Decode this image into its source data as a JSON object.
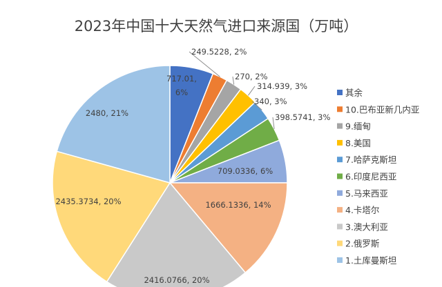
{
  "chart_data": {
    "type": "pie",
    "title": "2023年中国十大天然气进口来源国（万吨）",
    "legend_position": "right",
    "slices": [
      {
        "label": "其余",
        "value": 717.01,
        "percent": "6%",
        "color": "#4472c4",
        "data_label": "717.01, 6%"
      },
      {
        "label": "10.巴布亚新几内亚",
        "value": 249.5228,
        "percent": "2%",
        "color": "#ed7d31",
        "data_label": "249.5228, 2%"
      },
      {
        "label": "9.缅甸",
        "value": 270,
        "percent": "2%",
        "color": "#a5a5a5",
        "data_label": "270, 2%"
      },
      {
        "label": "8.美国",
        "value": 314.939,
        "percent": "3%",
        "color": "#ffc000",
        "data_label": "314.939, 3%"
      },
      {
        "label": "7.哈萨克斯坦",
        "value": 340,
        "percent": "3%",
        "color": "#5b9bd5",
        "data_label": "340, 3%"
      },
      {
        "label": "6.印度尼西亚",
        "value": 398.5741,
        "percent": "3%",
        "color": "#70ad47",
        "data_label": "398.5741, 3%"
      },
      {
        "label": "5.马来西亚",
        "value": 709.0336,
        "percent": "6%",
        "color": "#8faadc",
        "data_label": "709.0336, 6%"
      },
      {
        "label": "4.卡塔尔",
        "value": 1666.1336,
        "percent": "14%",
        "color": "#f4b183",
        "data_label": "1666.1336, 14%"
      },
      {
        "label": "3.澳大利亚",
        "value": 2416.0766,
        "percent": "20%",
        "color": "#c9c9c9",
        "data_label": "2416.0766, 20%"
      },
      {
        "label": "2.俄罗斯",
        "value": 2435.3734,
        "percent": "20%",
        "color": "#ffd97a",
        "data_label": "2435.3734, 20%"
      },
      {
        "label": "1.土库曼斯坦",
        "value": 2480,
        "percent": "21%",
        "color": "#9dc3e6",
        "data_label": "2480, 21%"
      }
    ]
  }
}
